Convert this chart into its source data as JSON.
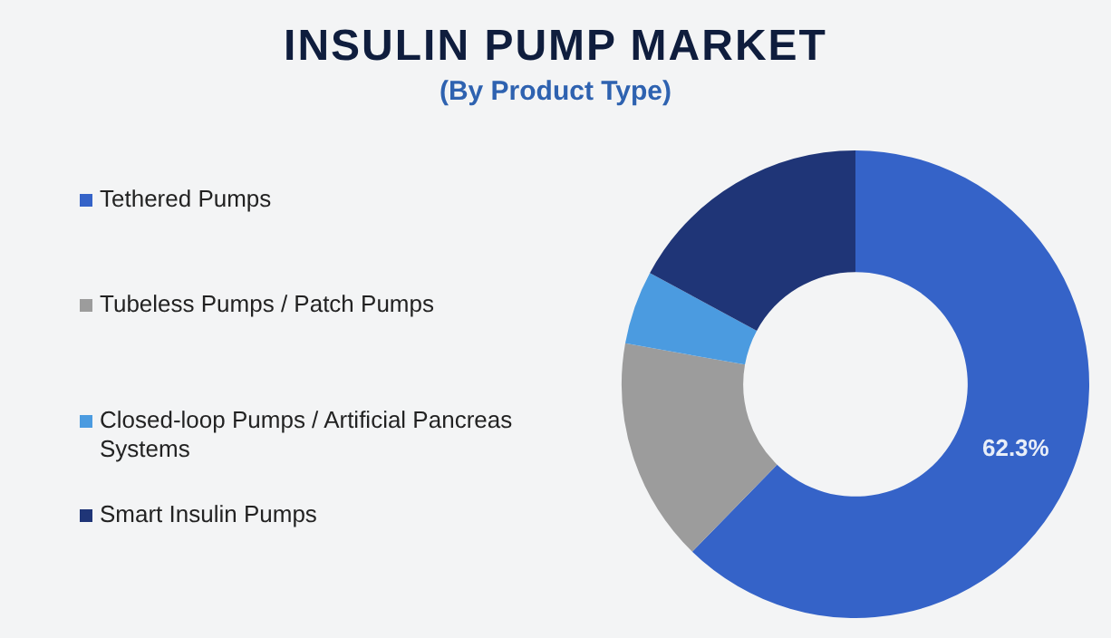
{
  "chart_data": {
    "type": "donut",
    "title": "INSULIN PUMP MARKET",
    "subtitle": "(By Product Type)",
    "categories": [
      "Tethered Pumps",
      "Tubeless Pumps / Patch Pumps",
      "Closed-loop Pumps / Artificial Pancreas Systems",
      "Smart Insulin Pumps"
    ],
    "values": [
      62.3,
      15.5,
      5.1,
      17.1
    ],
    "colors": [
      "#3563c8",
      "#9c9c9c",
      "#4b9be0",
      "#1f3577"
    ],
    "value_labels": [
      "62.3%",
      null,
      null,
      null
    ],
    "legend": "left"
  }
}
